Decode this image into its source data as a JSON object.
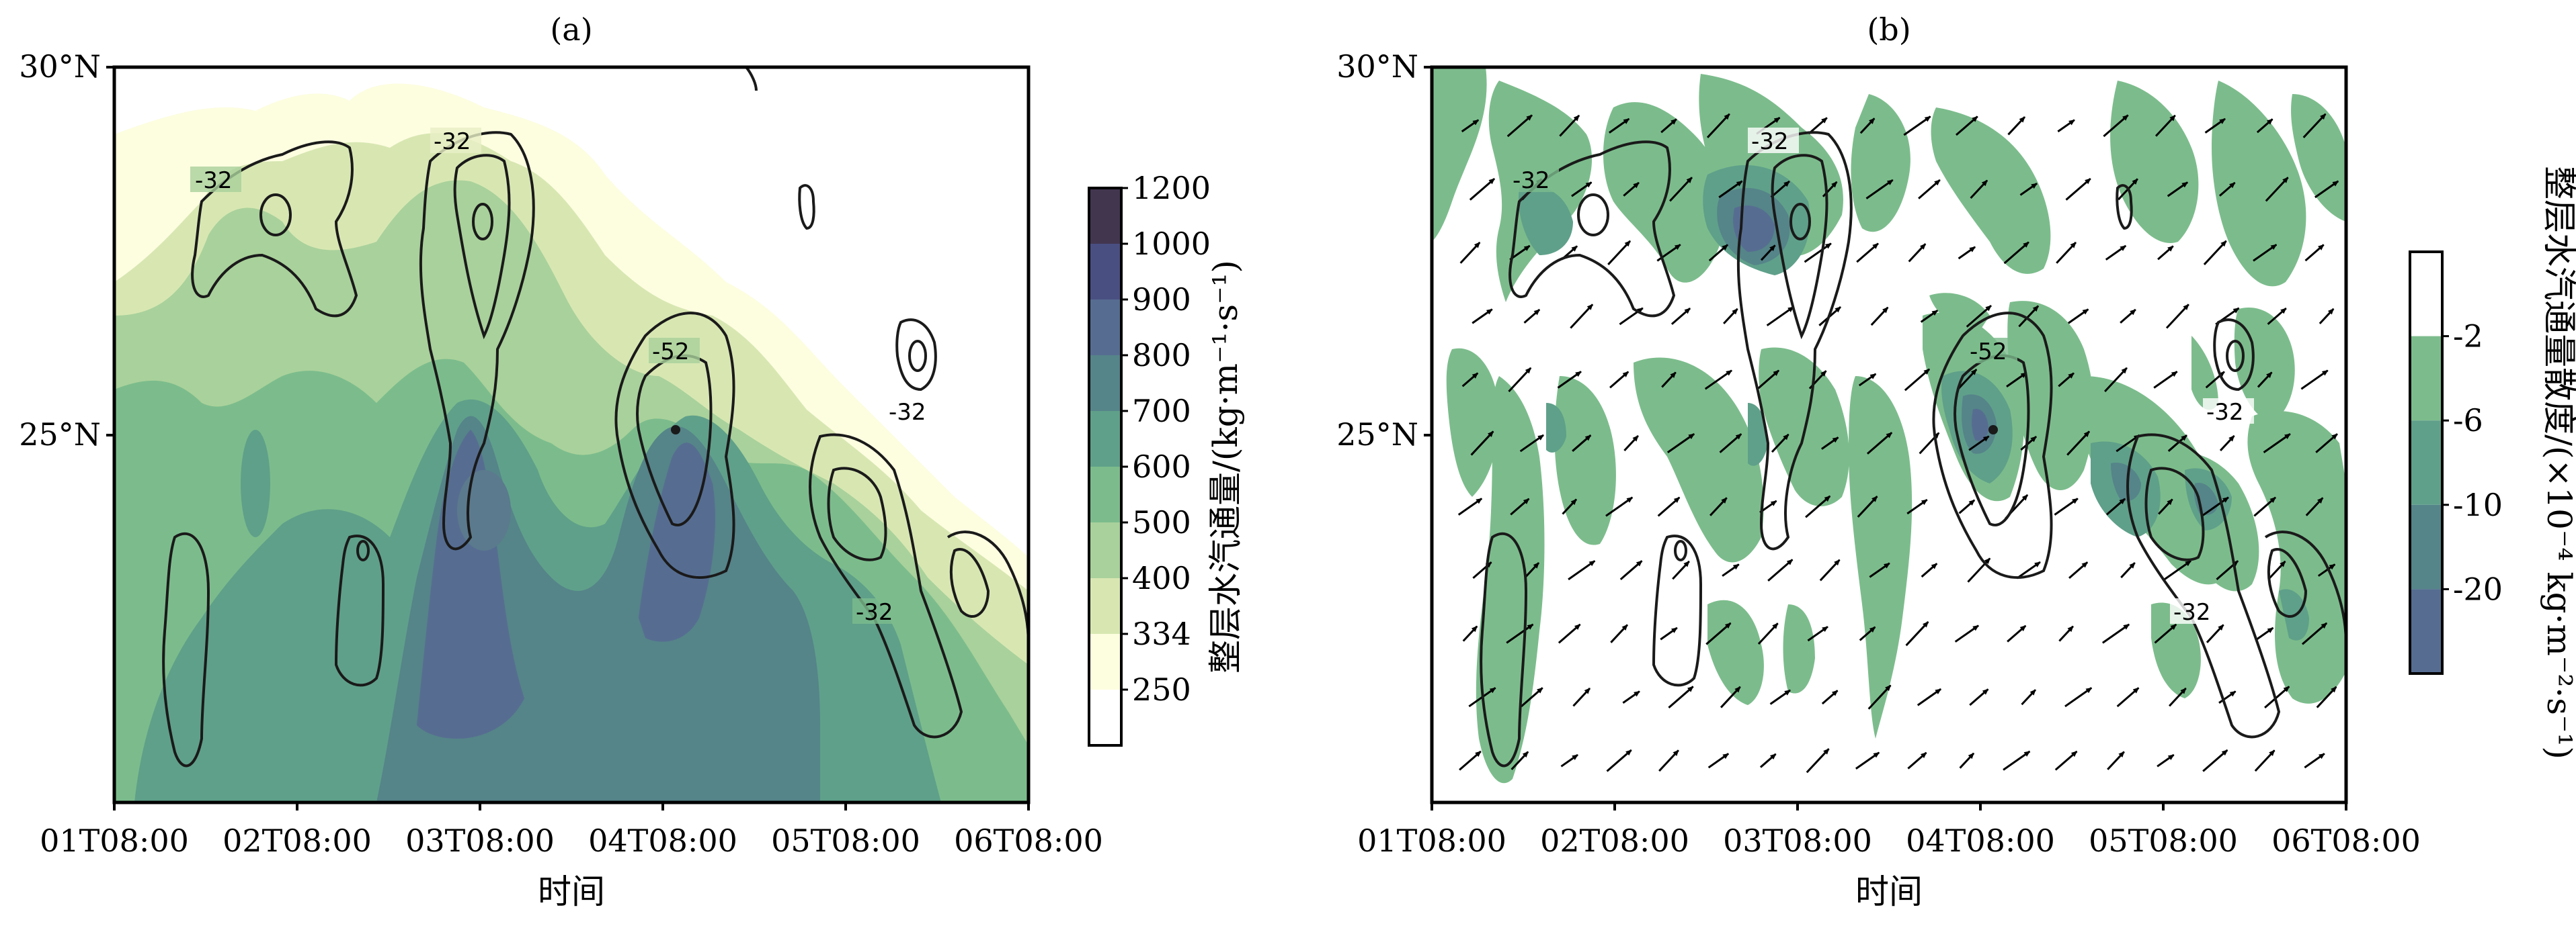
{
  "chart_data": [
    {
      "panel": "(a)",
      "type": "contourf",
      "xlabel": "时间",
      "x_ticks": [
        "01T08:00",
        "02T08:00",
        "03T08:00",
        "04T08:00",
        "05T08:00",
        "06T08:00"
      ],
      "y_ticks": [
        "25°N",
        "30°N"
      ],
      "ylim": [
        20,
        30
      ],
      "colorbar": {
        "label": "整层水汽通量/(kg·m⁻¹·s⁻¹)",
        "levels": [
          "250",
          "334",
          "400",
          "500",
          "600",
          "700",
          "800",
          "900",
          "1000",
          "1200"
        ],
        "colors": [
          "#ffffff",
          "#fdfde0",
          "#d8e7b2",
          "#a9d19b",
          "#7cbc8c",
          "#5fa08a",
          "#558489",
          "#566d91",
          "#4a4f81",
          "#42364f"
        ]
      },
      "contour_labels": [
        "-32",
        "-32",
        "-52",
        "-32",
        "-32"
      ],
      "contour_color": "#1a1a1a"
    },
    {
      "panel": "(b)",
      "type": "contourf+quiver",
      "xlabel": "时间",
      "x_ticks": [
        "01T08:00",
        "02T08:00",
        "03T08:00",
        "04T08:00",
        "05T08:00",
        "06T08:00"
      ],
      "y_ticks": [
        "25°N",
        "30°N"
      ],
      "ylim": [
        20,
        30
      ],
      "colorbar": {
        "label": "整层水汽通量散度/(×10⁻⁴ kg·m⁻²·s⁻¹)",
        "levels": [
          "-2",
          "-6",
          "-10",
          "-20"
        ],
        "colors": [
          "#ffffff",
          "#7cbc8c",
          "#5fa08a",
          "#558489",
          "#566d91"
        ]
      },
      "contour_labels": [
        "-32",
        "-32",
        "-52",
        "-32",
        "-32"
      ],
      "contour_color": "#1a1a1a"
    }
  ]
}
